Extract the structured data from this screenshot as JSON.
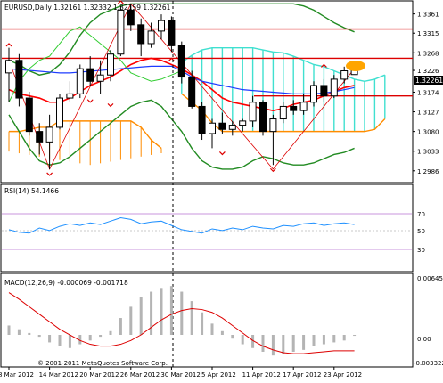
{
  "main_panel": {
    "header": "EURUSD,Daily  1.32161 1.32332 1.32159 1.32261",
    "price_tag": "1.32261"
  },
  "rsi_panel": {
    "header": "RSI(14) 54.1466",
    "levels": [
      "70",
      "50",
      "30"
    ]
  },
  "macd_panel": {
    "header": "MACD(12,26,9) -0.000069 -0.001718",
    "axis": [
      "0.006455",
      "0.00",
      "-0.003322"
    ]
  },
  "copyright": "© 2001-2011 MetaQuotes Software Corp.",
  "colors": {
    "bull": "#ffffff",
    "bear": "#000000",
    "cloud": "#40e0d0",
    "kumo_orange": "#ff8c00",
    "tenkan": "#ff0000",
    "kijun": "#1e3cff",
    "chikou": "#32cd32",
    "bands": "#228b22",
    "horizontal_levels": "#dd0000",
    "rsi_line": "#1e90ff",
    "macd_signal": "#dd0000",
    "macd_hist": "#b4b4b4"
  },
  "chart_data": {
    "type": "candlestick",
    "symbol": "EURUSD",
    "timeframe": "Daily",
    "y_ticks": [
      1.3361,
      1.3315,
      1.3268,
      1.3226,
      1.3174,
      1.3127,
      1.308,
      1.3033,
      1.2986
    ],
    "ylim": [
      1.296,
      1.339
    ],
    "x_ticks": [
      "8 Mar 2012",
      "14 Mar 2012",
      "20 Mar 2012",
      "26 Mar 2012",
      "30 Mar 2012",
      "5 Apr 2012",
      "11 Apr 2012",
      "17 Apr 2012",
      "23 Apr 2012"
    ],
    "candles": [
      {
        "o": 1.322,
        "h": 1.328,
        "l": 1.315,
        "c": 1.325
      },
      {
        "o": 1.325,
        "h": 1.3265,
        "l": 1.314,
        "c": 1.316
      },
      {
        "o": 1.316,
        "h": 1.3175,
        "l": 1.307,
        "c": 1.308
      },
      {
        "o": 1.308,
        "h": 1.31,
        "l": 1.3025,
        "c": 1.3055
      },
      {
        "o": 1.3055,
        "h": 1.312,
        "l": 1.299,
        "c": 1.309
      },
      {
        "o": 1.309,
        "h": 1.317,
        "l": 1.3085,
        "c": 1.316
      },
      {
        "o": 1.316,
        "h": 1.32,
        "l": 1.315,
        "c": 1.317
      },
      {
        "o": 1.317,
        "h": 1.324,
        "l": 1.316,
        "c": 1.323
      },
      {
        "o": 1.323,
        "h": 1.326,
        "l": 1.319,
        "c": 1.32
      },
      {
        "o": 1.32,
        "h": 1.325,
        "l": 1.317,
        "c": 1.3215
      },
      {
        "o": 1.3215,
        "h": 1.3275,
        "l": 1.32,
        "c": 1.3265
      },
      {
        "o": 1.3265,
        "h": 1.338,
        "l": 1.326,
        "c": 1.337
      },
      {
        "o": 1.337,
        "h": 1.3385,
        "l": 1.332,
        "c": 1.3335
      },
      {
        "o": 1.3335,
        "h": 1.335,
        "l": 1.326,
        "c": 1.329
      },
      {
        "o": 1.329,
        "h": 1.334,
        "l": 1.328,
        "c": 1.332
      },
      {
        "o": 1.332,
        "h": 1.336,
        "l": 1.33,
        "c": 1.3345
      },
      {
        "o": 1.3345,
        "h": 1.3355,
        "l": 1.327,
        "c": 1.3285
      },
      {
        "o": 1.3285,
        "h": 1.3295,
        "l": 1.3195,
        "c": 1.321
      },
      {
        "o": 1.321,
        "h": 1.3225,
        "l": 1.3135,
        "c": 1.314
      },
      {
        "o": 1.314,
        "h": 1.315,
        "l": 1.306,
        "c": 1.3075
      },
      {
        "o": 1.3075,
        "h": 1.311,
        "l": 1.304,
        "c": 1.31
      },
      {
        "o": 1.31,
        "h": 1.3125,
        "l": 1.3075,
        "c": 1.3085
      },
      {
        "o": 1.3085,
        "h": 1.3105,
        "l": 1.307,
        "c": 1.3095
      },
      {
        "o": 1.3095,
        "h": 1.311,
        "l": 1.308,
        "c": 1.3105
      },
      {
        "o": 1.3105,
        "h": 1.3165,
        "l": 1.309,
        "c": 1.315
      },
      {
        "o": 1.315,
        "h": 1.3155,
        "l": 1.307,
        "c": 1.308
      },
      {
        "o": 1.308,
        "h": 1.312,
        "l": 1.3,
        "c": 1.311
      },
      {
        "o": 1.311,
        "h": 1.315,
        "l": 1.31,
        "c": 1.314
      },
      {
        "o": 1.314,
        "h": 1.3155,
        "l": 1.312,
        "c": 1.313
      },
      {
        "o": 1.313,
        "h": 1.317,
        "l": 1.312,
        "c": 1.315
      },
      {
        "o": 1.315,
        "h": 1.32,
        "l": 1.314,
        "c": 1.319
      },
      {
        "o": 1.319,
        "h": 1.3205,
        "l": 1.315,
        "c": 1.3165
      },
      {
        "o": 1.3165,
        "h": 1.3215,
        "l": 1.316,
        "c": 1.3205
      },
      {
        "o": 1.3205,
        "h": 1.3235,
        "l": 1.3195,
        "c": 1.3225
      },
      {
        "o": 1.3216,
        "h": 1.3233,
        "l": 1.3216,
        "c": 1.3226
      }
    ],
    "horizontal_lines": [
      1.3325,
      1.3255,
      1.3165
    ]
  }
}
